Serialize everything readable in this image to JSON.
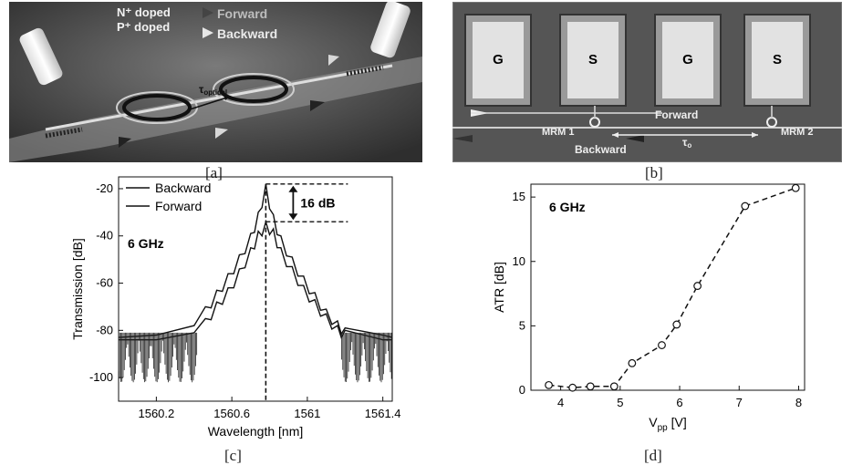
{
  "panels": {
    "a": {
      "caption": "[a]",
      "legend_n": "N⁺ doped",
      "legend_p": "P⁺ doped",
      "forward": "Forward",
      "backward": "Backward",
      "tau": "τ",
      "tau_sub": "optical"
    },
    "b": {
      "caption": "[b]",
      "pads": [
        "G",
        "S",
        "G",
        "S"
      ],
      "forward": "Forward",
      "backward": "Backward",
      "mrm1": "MRM 1",
      "mrm2": "MRM 2",
      "tau": "τ",
      "tau_sub": "o"
    },
    "c": {
      "caption": "[c]"
    },
    "d": {
      "caption": "[d]"
    }
  },
  "colors": {
    "photo_bg": "#3a3a3a",
    "chip_bg": "#555555",
    "pad": "#e2e2e2"
  },
  "chart_data": [
    {
      "type": "line",
      "xlabel": "Wavelength [nm]",
      "ylabel": "Transmission [dB]",
      "xlim": [
        1560.0,
        1561.45
      ],
      "ylim": [
        -110,
        -15
      ],
      "xticks": [
        1560.2,
        1560.6,
        1561,
        1561.4
      ],
      "xtick_labels": [
        "1560.2",
        "1560.6",
        "1561",
        "1561.4"
      ],
      "yticks": [
        -20,
        -40,
        -60,
        -80,
        -100
      ],
      "ytick_labels": [
        "-20",
        "-40",
        "-60",
        "-80",
        "-100"
      ],
      "grid": false,
      "legend": "top-left",
      "annotations": {
        "freq": "6 GHz",
        "delta": "16 dB",
        "peak_x": 1560.78,
        "top_y": -18,
        "bottom_y": -34
      },
      "series": [
        {
          "name": "Backward",
          "x": [
            1560.0,
            1560.2,
            1560.4,
            1560.46,
            1560.52,
            1560.58,
            1560.64,
            1560.7,
            1560.74,
            1560.78,
            1560.82,
            1560.86,
            1560.92,
            1560.98,
            1561.04,
            1561.1,
            1561.16,
            1561.2,
            1561.4,
            1561.45
          ],
          "y": [
            -83,
            -82,
            -78,
            -70,
            -63,
            -56,
            -48,
            -39,
            -30,
            -18,
            -31,
            -40,
            -49,
            -57,
            -64,
            -71,
            -76,
            -79,
            -82,
            -83
          ]
        },
        {
          "name": "Forward",
          "x": [
            1560.0,
            1560.2,
            1560.4,
            1560.46,
            1560.52,
            1560.58,
            1560.64,
            1560.7,
            1560.74,
            1560.78,
            1560.82,
            1560.86,
            1560.92,
            1560.98,
            1561.04,
            1561.1,
            1561.16,
            1561.2,
            1561.4,
            1561.45
          ],
          "y": [
            -84,
            -84,
            -81,
            -75,
            -68,
            -62,
            -54,
            -45,
            -38,
            -34,
            -37,
            -45,
            -53,
            -61,
            -67,
            -73,
            -78,
            -80,
            -84,
            -84
          ]
        }
      ]
    },
    {
      "type": "line",
      "xlabel": "V",
      "xlabel_sub": "pp",
      "xlabel_unit": " [V]",
      "ylabel": "ATR [dB]",
      "xlim": [
        3.5,
        8.1
      ],
      "ylim": [
        0,
        16
      ],
      "xticks": [
        4,
        5,
        6,
        7,
        8
      ],
      "xtick_labels": [
        "4",
        "5",
        "6",
        "7",
        "8"
      ],
      "yticks": [
        0,
        5,
        10,
        15
      ],
      "ytick_labels": [
        "0",
        "5",
        "10",
        "15"
      ],
      "grid": false,
      "annotations": {
        "freq": "6 GHz"
      },
      "series": [
        {
          "x": [
            3.8,
            4.2,
            4.5,
            4.9,
            5.2,
            5.7,
            5.95,
            6.3,
            7.1,
            7.95
          ],
          "y": [
            0.4,
            0.2,
            0.3,
            0.3,
            2.1,
            3.5,
            5.1,
            8.1,
            14.3,
            15.7
          ]
        }
      ]
    }
  ]
}
